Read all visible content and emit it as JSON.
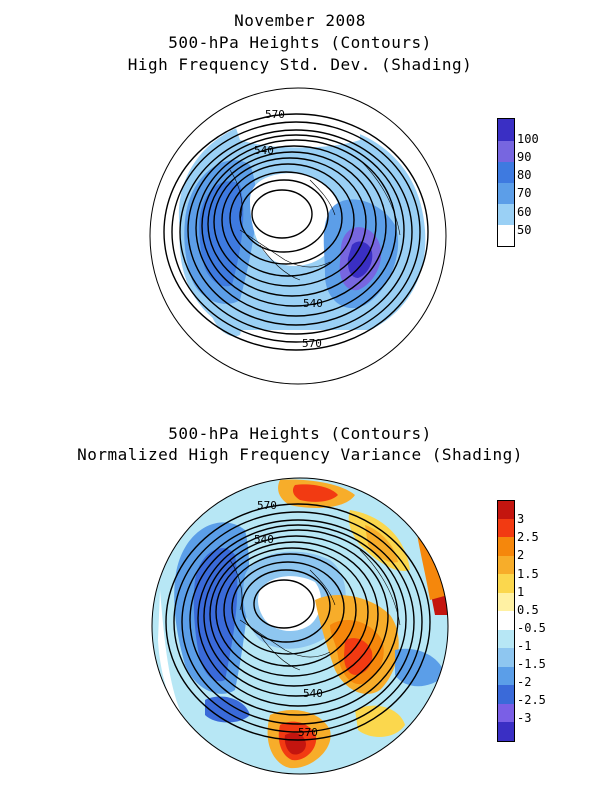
{
  "header": {
    "date": "November 2008",
    "line2": "500-hPa Heights (Contours)",
    "line3": "High Frequency Std. Dev. (Shading)"
  },
  "panel2": {
    "line1": "500-hPa Heights (Contours)",
    "line2": "Normalized High Frequency Variance (Shading)"
  },
  "map1": {
    "contour_labels": [
      "570",
      "540",
      "540",
      "570"
    ]
  },
  "map2": {
    "contour_labels": [
      "570",
      "540",
      "540",
      "570"
    ]
  },
  "colorbar1": {
    "labels": [
      "100",
      "90",
      "80",
      "70",
      "60",
      "50"
    ],
    "colors": [
      "#3a2fc4",
      "#7766e0",
      "#3e7ae0",
      "#5c9ee8",
      "#9ad0f5",
      "#ffffff"
    ]
  },
  "colorbar2": {
    "labels": [
      "3",
      "2.5",
      "2",
      "1.5",
      "1",
      "0.5",
      "-0.5",
      "-1",
      "-1.5",
      "-2",
      "-2.5",
      "-3"
    ],
    "colors": [
      "#c4150f",
      "#f23a12",
      "#f5870c",
      "#f7ad2a",
      "#fbd74d",
      "#fff1a3",
      "#ffffff",
      "#b7e7f5",
      "#8ec6f0",
      "#5b9ee8",
      "#3a6ad9",
      "#7a5fe6",
      "#3a2fc4"
    ]
  }
}
